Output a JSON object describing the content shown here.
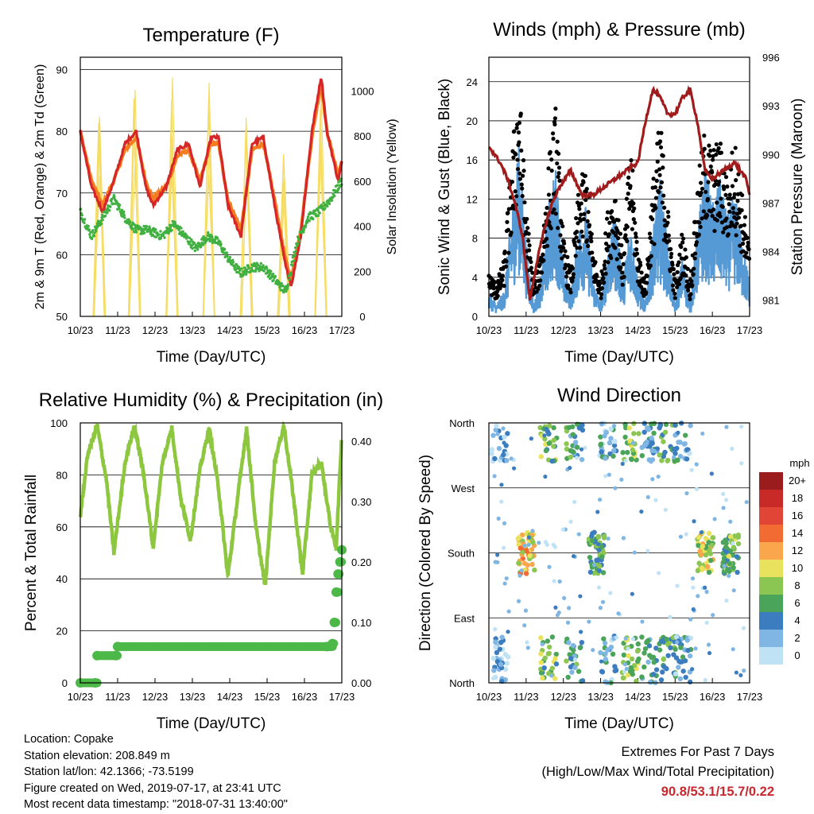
{
  "info": {
    "location": "Location: Copake",
    "elevation": "Station elevation: 208.849 m",
    "latlon": "Station lat/lon: 42.1366; -73.5199",
    "created": "Figure created on Wed, 2019-07-17, at 23:41 UTC",
    "recent": "Most recent data timestamp: \"2018-07-31 13:40:00\""
  },
  "extremes": {
    "line1": "Extremes For Past 7 Days",
    "line2": "(High/Low/Max Wind/Total Precipitation)",
    "values": "90.8/53.1/15.7/0.22"
  },
  "chart_data": [
    {
      "type": "line",
      "title": "Temperature (F)",
      "xlabel": "Time (Day/UTC)",
      "ylabel": "2m & 9m T (Red, Orange) & 2m Td (Green)",
      "ylabel_right": "Solar Insolation (Yellow)",
      "x_ticks": [
        "10/23",
        "11/23",
        "12/23",
        "13/23",
        "14/23",
        "15/23",
        "16/23",
        "17/23"
      ],
      "xlim": [
        10,
        17
      ],
      "ylim": [
        50,
        92
      ],
      "y_ticks": [
        50,
        60,
        70,
        80,
        90
      ],
      "ylim_right": [
        0,
        1150
      ],
      "y_ticks_right": [
        0,
        200,
        400,
        600,
        800,
        1000
      ],
      "colors": {
        "t2m": "#d62728",
        "t9m": "#f57d20",
        "td": "#40b040",
        "solar": "#f5dc64"
      },
      "series": [
        {
          "key": "t2m",
          "x": [
            10.0,
            10.3,
            10.6,
            10.9,
            11.2,
            11.5,
            11.75,
            11.95,
            12.3,
            12.6,
            12.9,
            13.2,
            13.5,
            13.7,
            13.95,
            14.3,
            14.6,
            14.9,
            15.2,
            15.5,
            15.65,
            15.9,
            16.2,
            16.45,
            16.6,
            16.9,
            17.0
          ],
          "values": [
            80,
            71,
            67,
            72,
            78,
            80,
            71,
            68,
            71,
            77,
            78,
            71,
            79,
            79,
            68,
            63,
            78,
            79,
            68,
            58,
            55,
            63,
            80,
            89,
            80,
            72,
            75
          ]
        },
        {
          "key": "t9m",
          "x": [
            10.0,
            10.3,
            10.6,
            10.9,
            11.2,
            11.5,
            11.75,
            11.95,
            12.3,
            12.6,
            12.9,
            13.2,
            13.5,
            13.7,
            13.95,
            14.3,
            14.6,
            14.9,
            15.2,
            15.5,
            15.65,
            15.9,
            16.2,
            16.45,
            16.6,
            16.9,
            17.0
          ],
          "values": [
            80,
            72,
            68,
            72,
            77,
            79,
            72,
            69,
            71,
            76,
            77,
            72,
            78,
            78,
            69,
            64,
            77,
            78,
            69,
            59,
            56,
            64,
            79,
            88,
            80,
            73,
            75
          ]
        },
        {
          "key": "td",
          "x": [
            10.0,
            10.3,
            10.6,
            10.9,
            11.2,
            11.5,
            11.8,
            12.2,
            12.5,
            12.8,
            13.1,
            13.4,
            13.7,
            14.0,
            14.3,
            14.6,
            14.9,
            15.2,
            15.5,
            15.8,
            16.1,
            16.4,
            16.7,
            17.0
          ],
          "values": [
            67,
            63,
            66,
            69,
            66,
            64,
            64,
            63,
            65,
            63,
            61,
            63,
            62,
            59,
            57,
            58,
            58,
            56,
            54,
            62,
            66,
            67,
            69,
            72
          ]
        },
        {
          "key": "solar",
          "x": [
            10.35,
            10.5,
            10.65,
            11.3,
            11.45,
            11.6,
            12.3,
            12.45,
            12.6,
            13.3,
            13.45,
            13.6,
            14.3,
            14.45,
            14.6,
            15.3,
            15.45,
            15.6,
            16.3,
            16.45,
            16.6
          ],
          "values": [
            0,
            980,
            0,
            0,
            1020,
            0,
            0,
            1050,
            0,
            0,
            1000,
            0,
            0,
            920,
            0,
            0,
            800,
            0,
            0,
            1040,
            0
          ]
        }
      ]
    },
    {
      "type": "scatter",
      "title": "Winds (mph) & Pressure (mb)",
      "xlabel": "Time (Day/UTC)",
      "ylabel": "Sonic Wind & Gust (Blue, Black)",
      "ylabel_right": "Station Pressure (Maroon)",
      "x_ticks": [
        "10/23",
        "11/23",
        "12/23",
        "13/23",
        "14/23",
        "15/23",
        "16/23",
        "17/23"
      ],
      "xlim": [
        10,
        17
      ],
      "ylim": [
        0,
        26.5
      ],
      "y_ticks": [
        0,
        4,
        8,
        12,
        16,
        20,
        24
      ],
      "ylim_right": [
        980,
        996
      ],
      "y_ticks_right": [
        981,
        984,
        987,
        990,
        993,
        996
      ],
      "colors": {
        "wind": "#5599d5",
        "gust": "#000000",
        "pressure": "#a01c1c"
      },
      "series": [
        {
          "key": "pressure",
          "x": [
            10.0,
            10.3,
            10.5,
            10.7,
            10.9,
            11.1,
            11.3,
            11.5,
            11.7,
            11.9,
            12.2,
            12.5,
            12.8,
            13.1,
            13.4,
            13.7,
            14.0,
            14.2,
            14.4,
            14.6,
            14.8,
            15.0,
            15.2,
            15.4,
            15.6,
            15.8,
            16.0,
            16.3,
            16.6,
            16.9,
            17.0
          ],
          "values": [
            990.5,
            989.5,
            988.5,
            987,
            985,
            981,
            983.5,
            985.5,
            987,
            988,
            989,
            987.5,
            987.5,
            988,
            988.5,
            989,
            989.5,
            992,
            994,
            993.5,
            992.5,
            992.5,
            993.5,
            994,
            992,
            989,
            988.5,
            989,
            989.5,
            988.5,
            987.5
          ]
        },
        {
          "key": "wind",
          "x": [
            10.0,
            10.2,
            10.4,
            10.6,
            10.8,
            11.0,
            11.2,
            11.4,
            11.6,
            11.8,
            12.0,
            12.2,
            12.4,
            12.6,
            12.8,
            13.0,
            13.2,
            13.4,
            13.6,
            13.8,
            14.0,
            14.2,
            14.4,
            14.6,
            14.8,
            15.0,
            15.2,
            15.4,
            15.6,
            15.8,
            16.0,
            16.2,
            16.4,
            16.6,
            16.8,
            17.0
          ],
          "values": [
            2,
            1,
            2,
            8,
            14,
            6,
            1,
            3,
            9,
            12,
            4,
            2,
            7,
            9,
            3,
            1,
            6,
            8,
            3,
            8,
            3,
            1,
            7,
            11,
            6,
            1,
            5,
            1,
            7,
            12,
            9,
            11,
            8,
            10,
            6,
            3
          ]
        },
        {
          "key": "gust",
          "x": [
            10.0,
            10.2,
            10.4,
            10.6,
            10.8,
            11.0,
            11.2,
            11.4,
            11.6,
            11.8,
            12.0,
            12.2,
            12.4,
            12.6,
            12.8,
            13.0,
            13.2,
            13.4,
            13.6,
            13.8,
            14.0,
            14.2,
            14.4,
            14.6,
            14.8,
            15.0,
            15.2,
            15.4,
            15.6,
            15.8,
            16.0,
            16.2,
            16.4,
            16.6,
            16.8,
            17.0
          ],
          "values": [
            4,
            3,
            5,
            14,
            22,
            10,
            3,
            6,
            14,
            19,
            7,
            4,
            11,
            14,
            6,
            3,
            10,
            12,
            5,
            16,
            6,
            3,
            12,
            18,
            10,
            3,
            8,
            3,
            12,
            17,
            15,
            16,
            13,
            16,
            11,
            6
          ]
        }
      ]
    },
    {
      "type": "line",
      "title": "Relative Humidity (%) & Precipitation (in)",
      "xlabel": "Time (Day/UTC)",
      "ylabel": "Percent & Total Rainfall",
      "x_ticks": [
        "10/23",
        "11/23",
        "12/23",
        "13/23",
        "14/23",
        "15/23",
        "16/23",
        "17/23"
      ],
      "xlim": [
        10,
        17
      ],
      "ylim": [
        0,
        100
      ],
      "y_ticks": [
        0,
        20,
        40,
        60,
        80,
        100
      ],
      "ylim_right": [
        0,
        0.43
      ],
      "y_ticks_right": [
        "0.00",
        "0.10",
        "0.20",
        "0.30",
        "0.40"
      ],
      "colors": {
        "rh": "#8dc63f",
        "precip": "#4cb848"
      },
      "series": [
        {
          "key": "rh",
          "x": [
            10.0,
            10.2,
            10.45,
            10.7,
            10.9,
            11.2,
            11.45,
            11.7,
            11.95,
            12.2,
            12.45,
            12.7,
            12.95,
            13.2,
            13.45,
            13.7,
            13.95,
            14.2,
            14.45,
            14.7,
            14.95,
            15.2,
            15.45,
            15.7,
            15.95,
            16.2,
            16.45,
            16.7,
            16.85,
            17.0
          ],
          "values": [
            64,
            88,
            99,
            78,
            50,
            85,
            99,
            80,
            52,
            85,
            98,
            70,
            55,
            82,
            98,
            75,
            41,
            70,
            98,
            60,
            37,
            85,
            99,
            72,
            42,
            80,
            85,
            60,
            52,
            96
          ]
        },
        {
          "key": "precip",
          "x": [
            10.0,
            10.4,
            10.45,
            10.95,
            11.0,
            16.6,
            16.75,
            16.8,
            16.85,
            16.9,
            16.95,
            17.0
          ],
          "values": [
            0.0,
            0.0,
            0.045,
            0.045,
            0.06,
            0.06,
            0.065,
            0.1,
            0.15,
            0.18,
            0.2,
            0.22
          ]
        }
      ]
    },
    {
      "type": "scatter",
      "title": "Wind Direction",
      "xlabel": "Time (Day/UTC)",
      "ylabel": "Direction (Colored By Speed)",
      "x_ticks": [
        "10/23",
        "11/23",
        "12/23",
        "13/23",
        "14/23",
        "15/23",
        "16/23",
        "17/23"
      ],
      "xlim": [
        10,
        17
      ],
      "y_ticks": [
        "North",
        "West",
        "South",
        "East",
        "North"
      ],
      "colorbar_title": "mph",
      "colorbar_labels": [
        "20+",
        "18",
        "16",
        "14",
        "12",
        "10",
        "8",
        "6",
        "4",
        "2",
        "0"
      ],
      "colorbar_colors": [
        "#9b1c1c",
        "#c82a28",
        "#e04535",
        "#f26b32",
        "#f9a64d",
        "#e8e25e",
        "#8cc652",
        "#4aa55a",
        "#3b7dbf",
        "#7fb6e3",
        "#bfe2f5"
      ],
      "clusters": [
        {
          "x": 10.3,
          "direction": "North",
          "speed": 2
        },
        {
          "x": 11.0,
          "direction": "South",
          "speed": 11
        },
        {
          "x": 11.6,
          "direction": "North",
          "speed": 7
        },
        {
          "x": 12.3,
          "direction": "North",
          "speed": 5
        },
        {
          "x": 12.9,
          "direction": "South",
          "speed": 6
        },
        {
          "x": 13.2,
          "direction": "North",
          "speed": 3
        },
        {
          "x": 13.8,
          "direction": "North",
          "speed": 8
        },
        {
          "x": 14.3,
          "direction": "North",
          "speed": 4
        },
        {
          "x": 14.8,
          "direction": "North",
          "speed": 6
        },
        {
          "x": 15.2,
          "direction": "North",
          "speed": 3
        },
        {
          "x": 15.8,
          "direction": "South",
          "speed": 9
        },
        {
          "x": 16.5,
          "direction": "South",
          "speed": 7
        }
      ]
    }
  ]
}
